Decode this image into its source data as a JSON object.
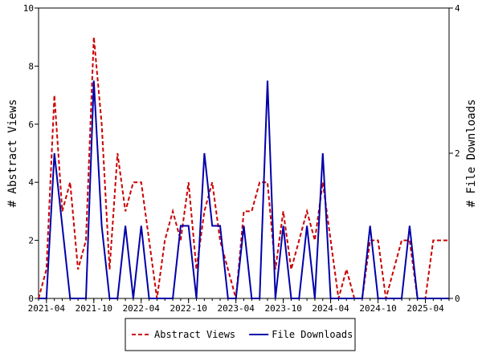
{
  "chart_data": {
    "type": "line",
    "x": [
      "2021-03",
      "2021-04",
      "2021-05",
      "2021-06",
      "2021-07",
      "2021-08",
      "2021-09",
      "2021-10",
      "2021-11",
      "2021-12",
      "2022-01",
      "2022-02",
      "2022-03",
      "2022-04",
      "2022-05",
      "2022-06",
      "2022-07",
      "2022-08",
      "2022-09",
      "2022-10",
      "2022-11",
      "2022-12",
      "2023-01",
      "2023-02",
      "2023-03",
      "2023-04",
      "2023-05",
      "2023-06",
      "2023-07",
      "2023-08",
      "2023-09",
      "2023-10",
      "2023-11",
      "2023-12",
      "2024-01",
      "2024-02",
      "2024-03",
      "2024-04",
      "2024-05",
      "2024-06",
      "2024-07",
      "2024-08",
      "2024-09",
      "2024-10",
      "2024-11",
      "2024-12",
      "2025-01",
      "2025-02",
      "2025-03",
      "2025-04",
      "2025-05",
      "2025-06",
      "2025-07"
    ],
    "x_ticks": [
      "2021-04",
      "2021-10",
      "2022-04",
      "2022-10",
      "2023-04",
      "2023-10",
      "2024-04",
      "2024-10",
      "2025-04"
    ],
    "ylabel": "# Abstract Views",
    "y2label": "# File Downloads",
    "ylim": [
      0,
      10
    ],
    "y2lim": [
      0,
      4
    ],
    "yticks": [
      "0",
      "2",
      "4",
      "6",
      "8",
      "10"
    ],
    "y2ticks": [
      "0",
      "2",
      "4"
    ],
    "series": [
      {
        "name": "Abstract Views",
        "axis": "left",
        "color": "#cc0000",
        "dash": true,
        "values": [
          0,
          1,
          7,
          3,
          4,
          1,
          2,
          9,
          6,
          1,
          5,
          3,
          4,
          4,
          2,
          0,
          2,
          3,
          2,
          4,
          1,
          3,
          4,
          2,
          1,
          0,
          3,
          3,
          4,
          4,
          1,
          3,
          1,
          2,
          3,
          2,
          4,
          2,
          0,
          1,
          0,
          0,
          2,
          2,
          0,
          1,
          2,
          2,
          0,
          0,
          2,
          2,
          2
        ]
      },
      {
        "name": "File Downloads",
        "axis": "right",
        "color": "#0000aa",
        "dash": false,
        "values": [
          0,
          0,
          2,
          1,
          0,
          0,
          0,
          3,
          1,
          0,
          0,
          1,
          0,
          1,
          0,
          0,
          0,
          0,
          1,
          1,
          0,
          2,
          1,
          1,
          0,
          0,
          1,
          0,
          0,
          3,
          0,
          1,
          0,
          0,
          1,
          0,
          2,
          0,
          0,
          0,
          0,
          0,
          1,
          0,
          0,
          0,
          0,
          1,
          0,
          0,
          0,
          0,
          0
        ]
      }
    ],
    "legend_position": "bottom",
    "grid": false
  }
}
